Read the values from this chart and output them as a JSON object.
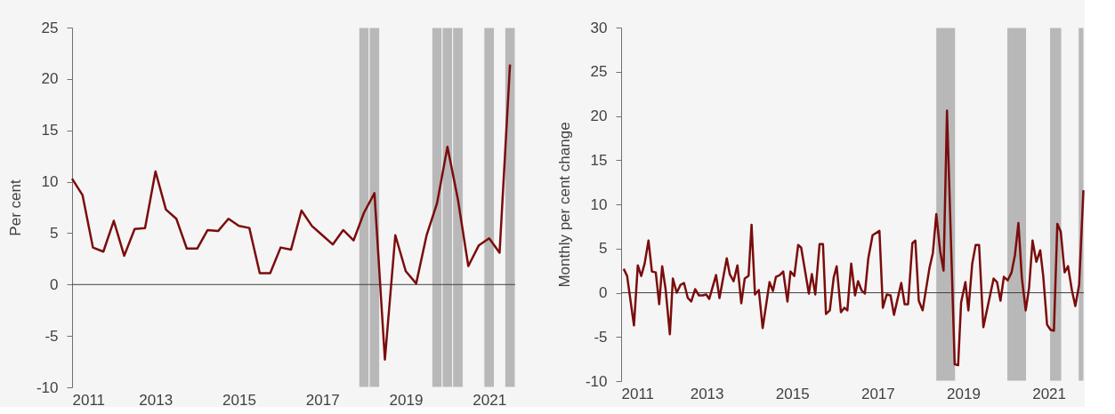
{
  "chart_data": [
    {
      "type": "line",
      "ylabel": "Per cent",
      "xlim": [
        2011,
        2021.625
      ],
      "ylim": [
        -10,
        25
      ],
      "xticks": [
        2011,
        2013,
        2015,
        2017,
        2019,
        2021
      ],
      "yticks": [
        -10,
        -5,
        0,
        5,
        10,
        15,
        20,
        25
      ],
      "grid": false,
      "x": [
        2011.0,
        2011.25,
        2011.5,
        2011.75,
        2012.0,
        2012.25,
        2012.5,
        2012.75,
        2013.0,
        2013.25,
        2013.5,
        2013.75,
        2014.0,
        2014.25,
        2014.5,
        2014.75,
        2015.0,
        2015.25,
        2015.5,
        2015.75,
        2016.0,
        2016.25,
        2016.5,
        2016.75,
        2017.0,
        2017.25,
        2017.5,
        2017.75,
        2018.0,
        2018.25,
        2018.5,
        2018.75,
        2019.0,
        2019.25,
        2019.5,
        2019.75,
        2020.0,
        2020.25,
        2020.5,
        2020.75,
        2021.0,
        2021.25,
        2021.5
      ],
      "series": [
        {
          "color": "#7b0c0c",
          "values": [
            10.3,
            8.7,
            3.6,
            3.2,
            6.2,
            2.8,
            5.4,
            5.5,
            11.0,
            7.3,
            6.4,
            3.5,
            3.5,
            5.3,
            5.2,
            6.4,
            5.7,
            5.5,
            1.1,
            1.1,
            3.6,
            3.4,
            7.2,
            5.7,
            4.8,
            3.9,
            5.3,
            4.3,
            7.0,
            8.9,
            -7.3,
            4.8,
            1.3,
            0.1,
            4.8,
            7.9,
            13.4,
            8.3,
            1.8,
            3.8,
            4.5,
            3.1,
            21.4
          ]
        }
      ],
      "ref_lines": [
        {
          "axis": "y",
          "value": 0,
          "color": "#404040"
        }
      ],
      "bands": [
        {
          "axis": "x",
          "from": 2017.875,
          "to": 2018.125,
          "color": "#b8b8b8"
        },
        {
          "axis": "x",
          "from": 2018.125,
          "to": 2018.375,
          "color": "#b8b8b8"
        },
        {
          "axis": "x",
          "from": 2019.625,
          "to": 2019.875,
          "color": "#b8b8b8"
        },
        {
          "axis": "x",
          "from": 2019.875,
          "to": 2020.125,
          "color": "#b8b8b8"
        },
        {
          "axis": "x",
          "from": 2020.125,
          "to": 2020.375,
          "color": "#b8b8b8"
        },
        {
          "axis": "x",
          "from": 2020.875,
          "to": 2021.125,
          "color": "#b8b8b8"
        },
        {
          "axis": "x",
          "from": 2021.375,
          "to": 2021.625,
          "color": "#b8b8b8"
        }
      ]
    },
    {
      "type": "line",
      "ylabel": "Monthly per cent change",
      "xlim": [
        2011,
        2021.82
      ],
      "ylim": [
        -10,
        30
      ],
      "xticks": [
        2011,
        2013,
        2015,
        2017,
        2019,
        2021
      ],
      "yticks": [
        -10,
        -5,
        0,
        5,
        10,
        15,
        20,
        25,
        30
      ],
      "grid": false,
      "x": [
        2011.06,
        2011.14,
        2011.3,
        2011.39,
        2011.47,
        2011.55,
        2011.64,
        2011.72,
        2011.81,
        2011.89,
        2011.96,
        2012.04,
        2012.14,
        2012.21,
        2012.3,
        2012.39,
        2012.47,
        2012.56,
        2012.64,
        2012.73,
        2012.82,
        2012.91,
        2012.99,
        2013.06,
        2013.22,
        2013.3,
        2013.47,
        2013.54,
        2013.63,
        2013.72,
        2013.81,
        2013.89,
        2013.98,
        2014.05,
        2014.13,
        2014.22,
        2014.31,
        2014.47,
        2014.55,
        2014.62,
        2014.71,
        2014.79,
        2014.89,
        2014.96,
        2015.05,
        2015.14,
        2015.21,
        2015.39,
        2015.46,
        2015.54,
        2015.64,
        2015.72,
        2015.79,
        2015.88,
        2015.97,
        2016.04,
        2016.14,
        2016.22,
        2016.29,
        2016.38,
        2016.47,
        2016.54,
        2016.62,
        2016.7,
        2016.78,
        2016.88,
        2017.04,
        2017.12,
        2017.21,
        2017.3,
        2017.38,
        2017.55,
        2017.63,
        2017.71,
        2017.81,
        2017.88,
        2017.96,
        2018.05,
        2018.21,
        2018.29,
        2018.37,
        2018.46,
        2018.54,
        2018.62,
        2018.8,
        2018.88,
        2018.95,
        2019.05,
        2019.12,
        2019.21,
        2019.29,
        2019.37,
        2019.47,
        2019.71,
        2019.79,
        2019.87,
        2019.95,
        2020.04,
        2020.13,
        2020.21,
        2020.29,
        2020.37,
        2020.46,
        2020.54,
        2020.62,
        2020.71,
        2020.8,
        2020.87,
        2020.96,
        2021.04,
        2021.12,
        2021.2,
        2021.28,
        2021.37,
        2021.45,
        2021.54,
        2021.62,
        2021.71,
        2021.81
      ],
      "series": [
        {
          "color": "#7b0c0c",
          "values": [
            2.7,
            1.9,
            -3.7,
            3.1,
            1.9,
            3.3,
            5.9,
            2.4,
            2.3,
            -1.3,
            3.0,
            0.4,
            -4.7,
            1.6,
            0,
            0.9,
            1.1,
            -0.6,
            -1.0,
            0.4,
            -0.3,
            -0.3,
            -0.2,
            -0.7,
            2.0,
            -0.6,
            3.9,
            2.1,
            1.3,
            3.1,
            -1.2,
            1.6,
            1.9,
            7.7,
            -0.2,
            0.3,
            -4.0,
            1.2,
            0.2,
            1.8,
            2.0,
            2.4,
            -1.0,
            2.4,
            1.9,
            5.4,
            5.1,
            -0.1,
            2.1,
            -0.2,
            5.5,
            5.5,
            -2.4,
            -2.0,
            1.7,
            3.0,
            -2.2,
            -1.7,
            -2.0,
            3.3,
            -0.3,
            1.3,
            0.3,
            -0.1,
            3.9,
            6.5,
            7.0,
            -1.7,
            -0.2,
            -0.3,
            -2.5,
            1.1,
            -1.3,
            -1.3,
            5.6,
            5.9,
            -0.9,
            -2.0,
            2.8,
            4.5,
            8.9,
            4.7,
            2.5,
            20.6,
            -8.1,
            -8.2,
            -1.1,
            1.2,
            -2.0,
            3.3,
            5.4,
            5.4,
            -3.9,
            1.6,
            1.2,
            -0.9,
            1.8,
            1.4,
            2.3,
            4.3,
            7.9,
            1.7,
            -2.0,
            0.6,
            5.9,
            3.5,
            4.8,
            1.9,
            -3.6,
            -4.2,
            -4.3,
            7.8,
            6.9,
            2.3,
            3.0,
            0.3,
            -1.5,
            0.9,
            11.6
          ]
        }
      ],
      "ref_lines": [
        {
          "axis": "y",
          "value": 0,
          "color": "#404040"
        }
      ],
      "bands": [
        {
          "axis": "x",
          "from": 2018.36,
          "to": 2018.82,
          "color": "#b8b8b8"
        },
        {
          "axis": "x",
          "from": 2020.02,
          "to": 2020.48,
          "color": "#b8b8b8"
        },
        {
          "axis": "x",
          "from": 2021.02,
          "to": 2021.3,
          "color": "#b8b8b8"
        },
        {
          "axis": "x",
          "from": 2021.69,
          "to": 2021.82,
          "color": "#b8b8b8"
        }
      ]
    }
  ]
}
